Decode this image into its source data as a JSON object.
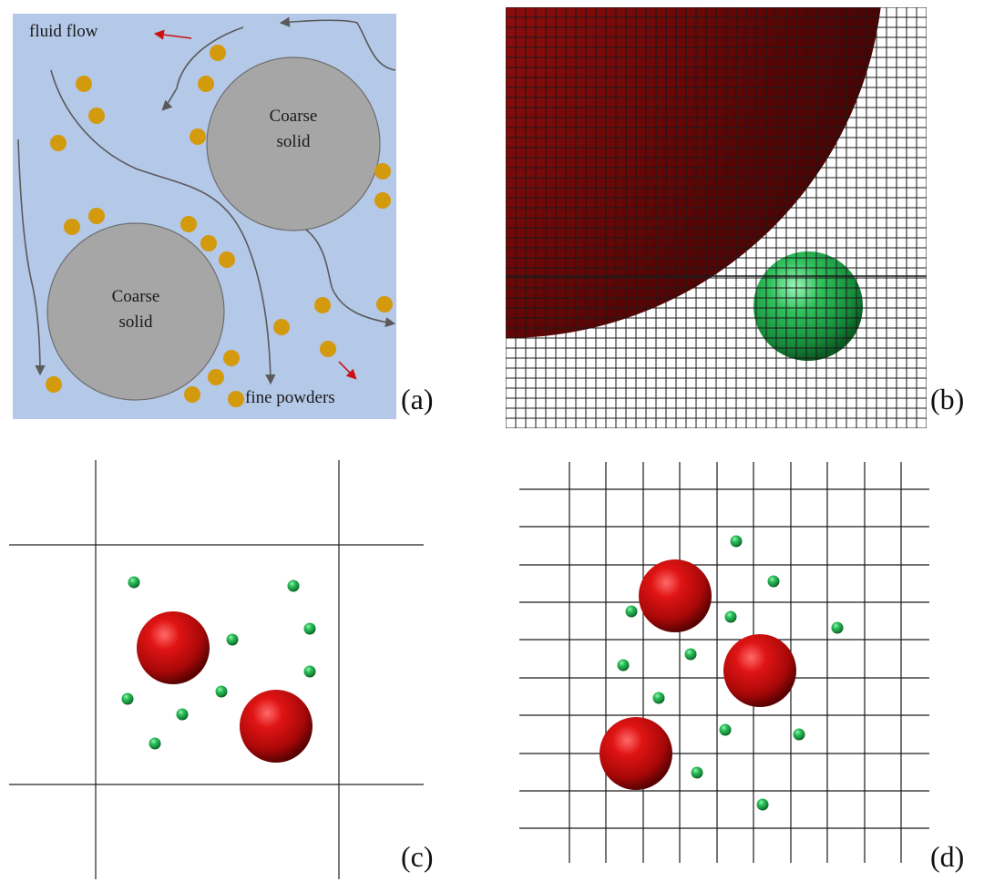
{
  "panels": {
    "a": {
      "label": "(a)",
      "flow_label": "fluid flow",
      "powder_label": "fine powders",
      "coarse_top": [
        "Coarse",
        "solid"
      ],
      "coarse_bottom": [
        "Coarse",
        "solid"
      ]
    },
    "b": {
      "label": "(b)"
    },
    "c": {
      "label": "(c)"
    },
    "d": {
      "label": "(d)"
    }
  },
  "colors": {
    "fluid_background": "#b4c8e8",
    "coarse_solid": "#a6a6a6",
    "fine_powder": "#d49a0e",
    "red_particle": "#cc1111",
    "green_particle": "#28b050",
    "flow_arrow": "#5a5a5a",
    "motion_arrow": "#cc1111"
  }
}
